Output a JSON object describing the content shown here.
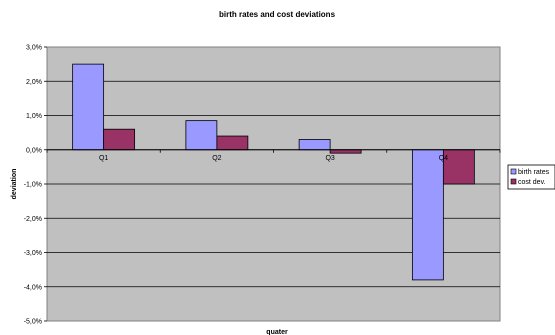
{
  "chart_data": {
    "type": "bar",
    "title": "birth rates and cost deviations",
    "xlabel": "quater",
    "ylabel": "deviation",
    "categories": [
      "Q1",
      "Q2",
      "Q3",
      "Q4"
    ],
    "series": [
      {
        "name": "birth rates",
        "values": [
          2.5,
          0.85,
          0.3,
          -3.8
        ],
        "color": "#9999ff"
      },
      {
        "name": "cost dev.",
        "values": [
          0.6,
          0.4,
          -0.1,
          -1.0
        ],
        "color": "#993366"
      }
    ],
    "ylim": [
      -5.0,
      3.0
    ],
    "yticks": [
      "3,0%",
      "2,0%",
      "1,0%",
      "0,0%",
      "-1,0%",
      "-2,0%",
      "-3,0%",
      "-4,0%",
      "-5,0%"
    ],
    "plot_background": "#c0c0c0",
    "grid": true,
    "legend_position": "right"
  }
}
